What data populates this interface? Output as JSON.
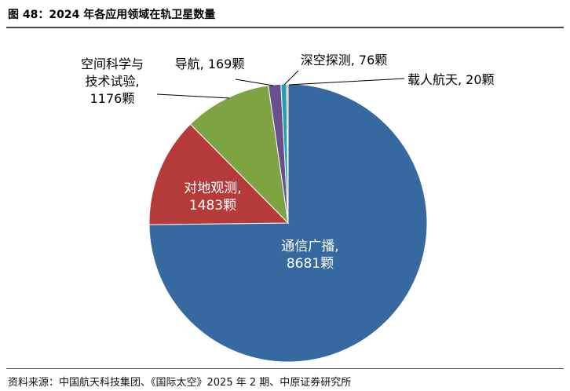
{
  "figure": {
    "title": "图 48：2024 年各应用领域在轨卫星数量",
    "source": "资料来源：中国航天科技集团、《国际太空》2025 年 2 期、中原证券研究所"
  },
  "chart_data": {
    "type": "pie",
    "title": "",
    "start_angle_deg": 0,
    "direction": "clockwise",
    "slices": [
      {
        "label_lines": [
          "通信广播,",
          "8681颗"
        ],
        "value": 8681,
        "color": "#3669a0"
      },
      {
        "label_lines": [
          "对地观测,",
          "1483颗"
        ],
        "value": 1483,
        "color": "#b53a3a"
      },
      {
        "label_lines": [
          "空间科学与",
          "技术试验,",
          "1176颗"
        ],
        "value": 1176,
        "color": "#7ea342"
      },
      {
        "label_lines": [
          "导航, 169颗"
        ],
        "value": 169,
        "color": "#6a4f8e"
      },
      {
        "label_lines": [
          "深空探测, 76颗"
        ],
        "value": 76,
        "color": "#1f9fb8"
      },
      {
        "label_lines": [
          "载人航天, 20颗"
        ],
        "value": 20,
        "color": "#e39a3a"
      }
    ]
  }
}
